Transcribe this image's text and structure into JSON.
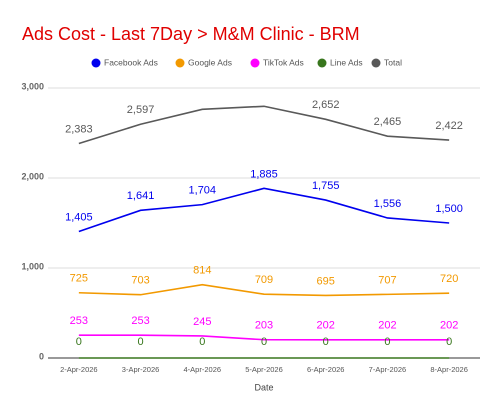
{
  "chart_data": {
    "type": "line",
    "title": "Ads Cost - Last 7Day > M&M Clinic - BRM",
    "x_label": "Date",
    "categories": [
      "2-Apr-2026",
      "3-Apr-2026",
      "4-Apr-2026",
      "5-Apr-2026",
      "6-Apr-2026",
      "7-Apr-2026",
      "8-Apr-2026"
    ],
    "series": [
      {
        "name": "Facebook Ads",
        "color": "#0000ee",
        "values": [
          1405,
          1641,
          1704,
          1885,
          1755,
          1556,
          1500
        ],
        "value_labels": [
          "1,405",
          "1,641",
          "1,704",
          "1,885",
          "1,755",
          "1,556",
          "1,500"
        ]
      },
      {
        "name": "Google Ads",
        "color": "#f29900",
        "values": [
          725,
          703,
          814,
          709,
          695,
          707,
          720
        ]
      },
      {
        "name": "TikTok Ads",
        "color": "#ff00ff",
        "values": [
          253,
          253,
          245,
          203,
          202,
          202,
          202
        ]
      },
      {
        "name": "Line Ads",
        "color": "#38761d",
        "values": [
          0,
          0,
          0,
          0,
          0,
          0,
          0
        ]
      },
      {
        "name": "Total",
        "color": "#595959",
        "values": [
          2383,
          2597,
          2763,
          2797,
          2652,
          2465,
          2422
        ],
        "value_labels": [
          "2,383",
          "2,597",
          null,
          null,
          "2,652",
          "2,465",
          "2,422"
        ]
      }
    ],
    "ylim": [
      0,
      3000
    ],
    "yticks": [
      0,
      {
        "value": 1000,
        "label": "1,000"
      },
      {
        "value": 2000,
        "label": "2,000"
      },
      {
        "value": 3000,
        "label": "3,000"
      }
    ],
    "grid": true,
    "legend": "top"
  }
}
